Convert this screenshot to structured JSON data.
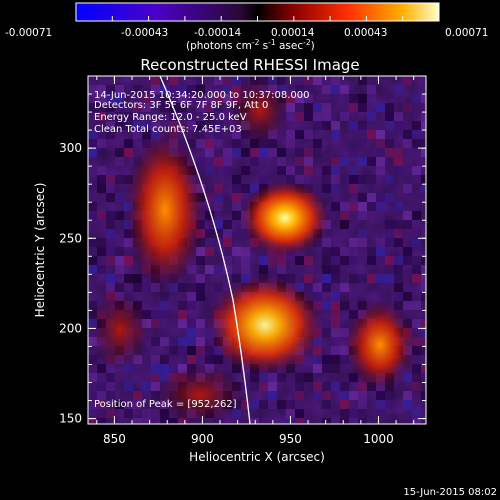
{
  "colorbar": {
    "tick_labels": [
      "-0.00071",
      "-0.00043",
      "-0.00014",
      "0.00014",
      "0.00043",
      "0.00071"
    ],
    "units_prefix": "(photons cm",
    "units_exp1": "-2",
    "units_mid1": " s",
    "units_exp2": "-1",
    "units_mid2": " asec",
    "units_exp3": "-2",
    "units_suffix": ")"
  },
  "title": "Reconstructed RHESSI Image",
  "annotations": {
    "time_range": "14-Jun-2015 10:34:20.000 to 10:37:08.000",
    "detectors": "Detectors: 3F 5F 6F 7F 8F 9F, Att 0",
    "energy_range": "Energy Range: 12.0 - 25.0 keV",
    "method_counts": "Clean    Total counts: 7.45E+03",
    "peak_position": "Position of Peak = [952,262]"
  },
  "axes": {
    "xlabel": "Heliocentric X (arcsec)",
    "ylabel": "Heliocentric Y (arcsec)",
    "x_ticks": [
      850,
      900,
      950,
      1000
    ],
    "y_ticks": [
      150,
      200,
      250,
      300
    ],
    "x_range": [
      835,
      1027
    ],
    "y_range": [
      147,
      340
    ]
  },
  "footer": {
    "date_stamp": "15-Jun-2015 08:02"
  },
  "colors": {
    "background": "#000000",
    "limb_line": "#ffffff"
  }
}
